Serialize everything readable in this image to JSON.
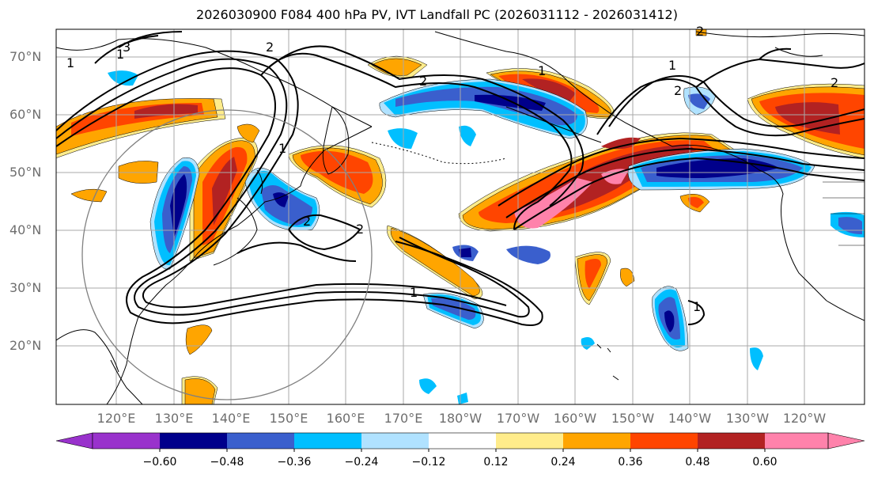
{
  "title": "2026030900 F084 400 hPa PV, IVT Landfall PC (2026031112 - 2026031412)",
  "lat_labels": [
    "70°N",
    "60°N",
    "50°N",
    "40°N",
    "30°N",
    "20°N"
  ],
  "lon_labels": [
    "120°E",
    "130°E",
    "140°E",
    "150°E",
    "160°E",
    "170°E",
    "180°W",
    "170°W",
    "160°W",
    "150°W",
    "140°W",
    "130°W",
    "120°W"
  ],
  "contour_labels": [
    "1",
    "2",
    "3"
  ],
  "colorbar": {
    "ticks": [
      "−0.60",
      "−0.48",
      "−0.36",
      "−0.24",
      "−0.12",
      "0.12",
      "0.24",
      "0.36",
      "0.48",
      "0.60"
    ],
    "colors": [
      "#9932cc",
      "#00008b",
      "#3a5fcd",
      "#00bfff",
      "#b0e2ff",
      "#ffffff",
      "#ffec8b",
      "#ffa500",
      "#ff4500",
      "#b22222",
      "#ff82ab"
    ]
  },
  "colors": {
    "grid": "#a9a9a9",
    "coast": "#000000",
    "contour": "#000000",
    "axis_label": "#6e6e6e"
  }
}
